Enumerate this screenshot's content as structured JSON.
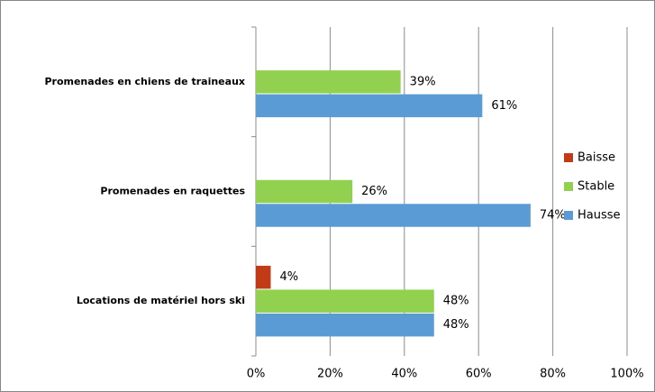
{
  "chart_data": {
    "type": "bar",
    "orientation": "horizontal",
    "categories": [
      "Promenades en chiens de traineaux",
      "Promenades en raquettes",
      "Locations de matériel hors ski"
    ],
    "series": [
      {
        "name": "Baisse",
        "color": "#c23b16",
        "values": [
          null,
          null,
          4
        ],
        "value_labels": [
          null,
          null,
          "4%"
        ]
      },
      {
        "name": "Stable",
        "color": "#92d050",
        "values": [
          39,
          26,
          48
        ],
        "value_labels": [
          "39%",
          "26%",
          "48%"
        ]
      },
      {
        "name": "Hausse",
        "color": "#5b9bd5",
        "values": [
          61,
          74,
          48
        ],
        "value_labels": [
          "61%",
          "74%",
          "48%"
        ]
      }
    ],
    "xlim": [
      0,
      100
    ],
    "xticks": [
      {
        "value": 0,
        "label": "0%"
      },
      {
        "value": 20,
        "label": "20%"
      },
      {
        "value": 40,
        "label": "40%"
      },
      {
        "value": 60,
        "label": "60%"
      },
      {
        "value": 80,
        "label": "80%"
      },
      {
        "value": 100,
        "label": "100%"
      }
    ],
    "grid": true,
    "legend": "right"
  }
}
